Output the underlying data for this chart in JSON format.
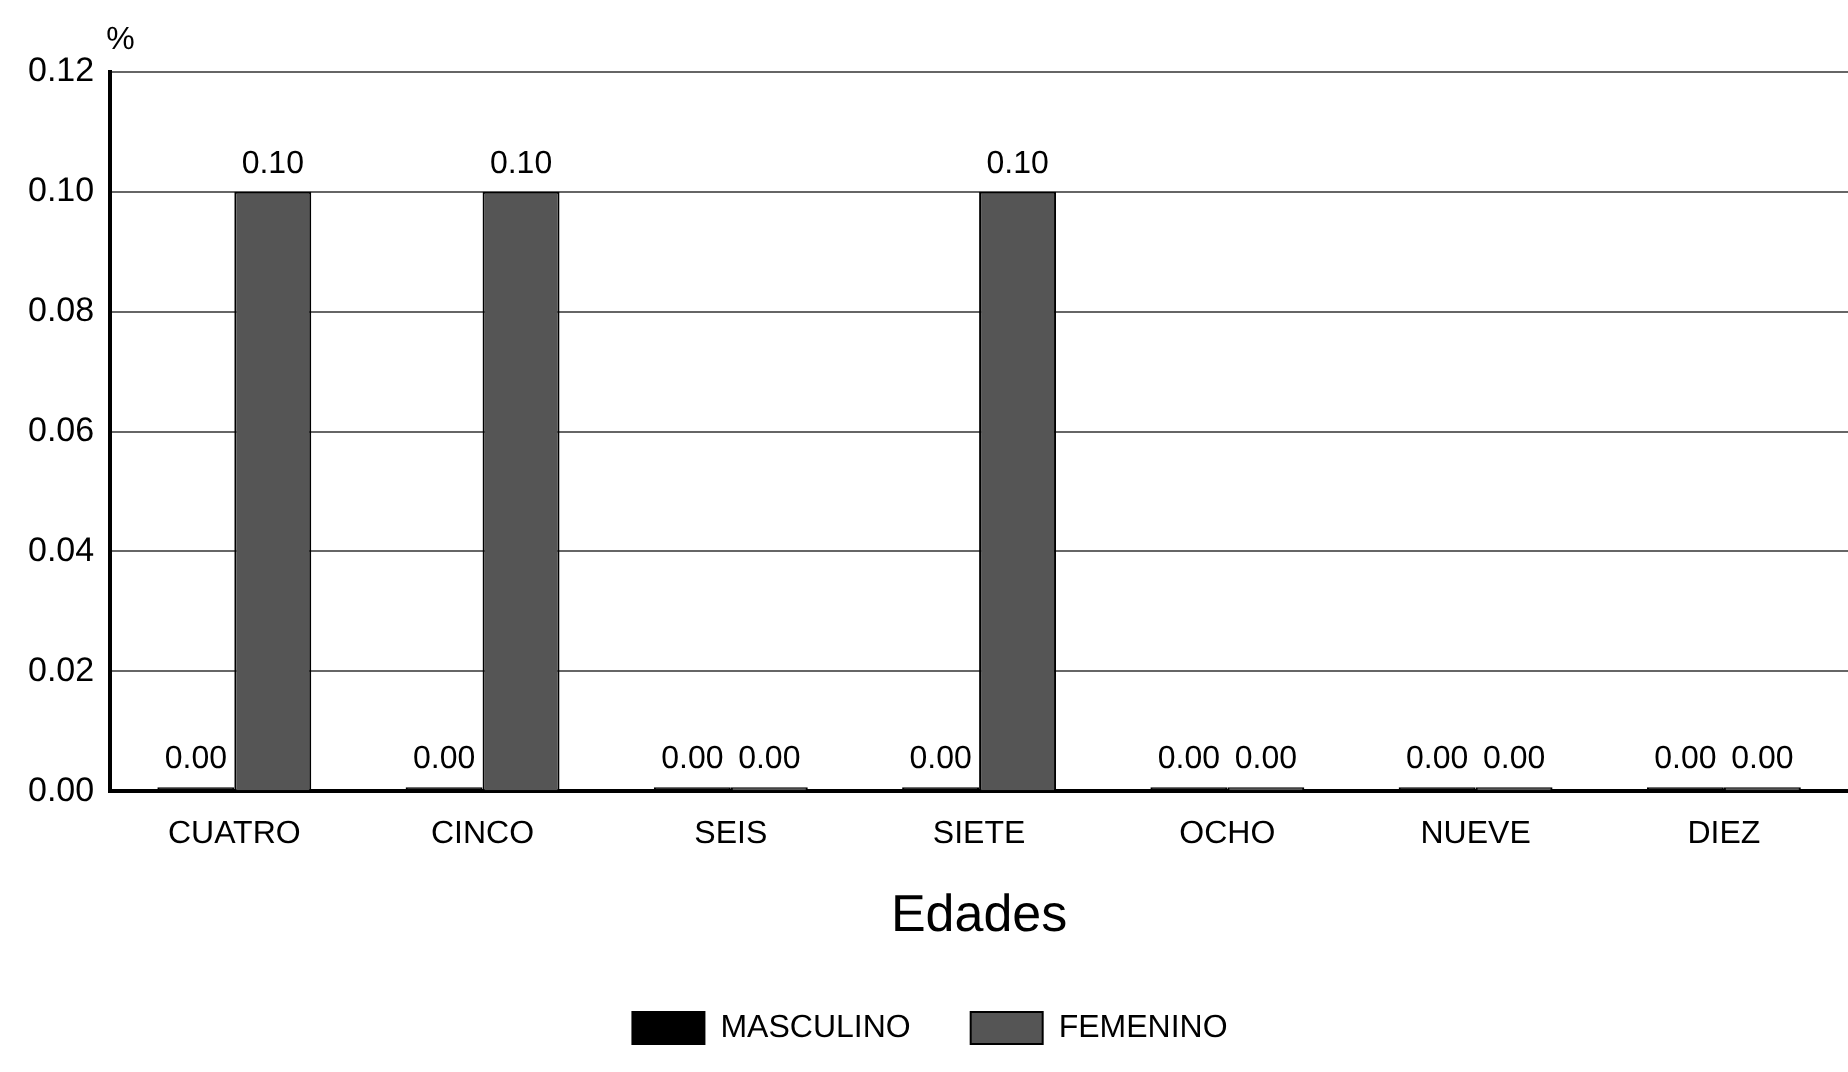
{
  "chart_data": {
    "type": "bar",
    "ylabel": "%",
    "xlabel": "Edades",
    "categories": [
      "CUATRO",
      "CINCO",
      "SEIS",
      "SIETE",
      "OCHO",
      "NUEVE",
      "DIEZ"
    ],
    "series": [
      {
        "name": "MASCULINO",
        "color": "#000000",
        "values": [
          0,
          0,
          0,
          0,
          0,
          0,
          0
        ],
        "value_labels": [
          "0.00",
          "0.00",
          "0.00",
          "0.00",
          "0.00",
          "0.00",
          "0.00"
        ]
      },
      {
        "name": "FEMENINO",
        "color": "#555555",
        "values": [
          0.1,
          0.1,
          0,
          0.1,
          0,
          0,
          0
        ],
        "value_labels": [
          "0.10",
          "0.10",
          "0.00",
          "0.10",
          "0.00",
          "0.00",
          "0.00"
        ]
      }
    ],
    "ylim": [
      0,
      0.12
    ],
    "yticks": [
      {
        "value": 0,
        "label": "0.00"
      },
      {
        "value": 0.02,
        "label": "0.02"
      },
      {
        "value": 0.04,
        "label": "0.04"
      },
      {
        "value": 0.06,
        "label": "0.06"
      },
      {
        "value": 0.08,
        "label": "0.08"
      },
      {
        "value": 0.1,
        "label": "0.10"
      },
      {
        "value": 0.12,
        "label": "0.12"
      }
    ],
    "grid": "y",
    "legend": "bottom"
  }
}
